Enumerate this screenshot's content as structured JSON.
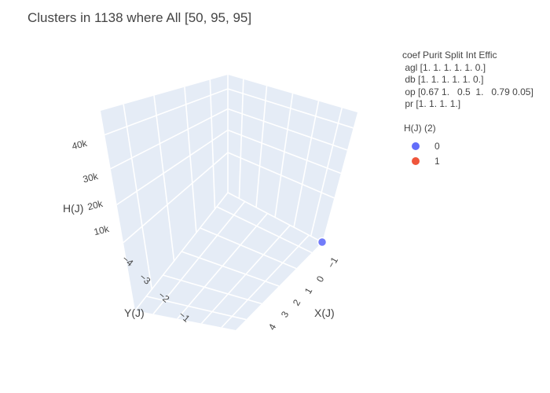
{
  "chart_data": {
    "type": "scatter3d",
    "title": "Clusters in 1138 where All [50, 95, 95]",
    "xlabel": "X(J)",
    "ylabel": "Y(J)",
    "zlabel": "H(J)",
    "x_ticks": [
      "−1",
      "0",
      "1",
      "2",
      "3",
      "4"
    ],
    "y_ticks": [
      "−4",
      "−3",
      "−2",
      "−1"
    ],
    "z_ticks": [
      "10k",
      "20k",
      "30k",
      "40k"
    ],
    "grid": true,
    "legend": {
      "title": "H(J) (2)",
      "placement": "right",
      "entries": [
        {
          "name": "0",
          "color": "#636efa"
        },
        {
          "name": "1",
          "color": "#ef553b"
        }
      ]
    },
    "annotation_lines": [
      "coef Purit Split Int Effic",
      " agl [1. 1. 1. 1. 1. 0.]",
      " db [1. 1. 1. 1. 1. 0.]",
      " op [0.67 1.   0.5  1.   0.79 0.05]",
      " pr [1. 1. 1. 1.]"
    ],
    "series": [
      {
        "name": "0",
        "color": "#636efa",
        "points": [
          {
            "x": -1,
            "y": -1,
            "h": 0
          }
        ]
      },
      {
        "name": "1",
        "color": "#ef553b",
        "points": []
      }
    ]
  }
}
